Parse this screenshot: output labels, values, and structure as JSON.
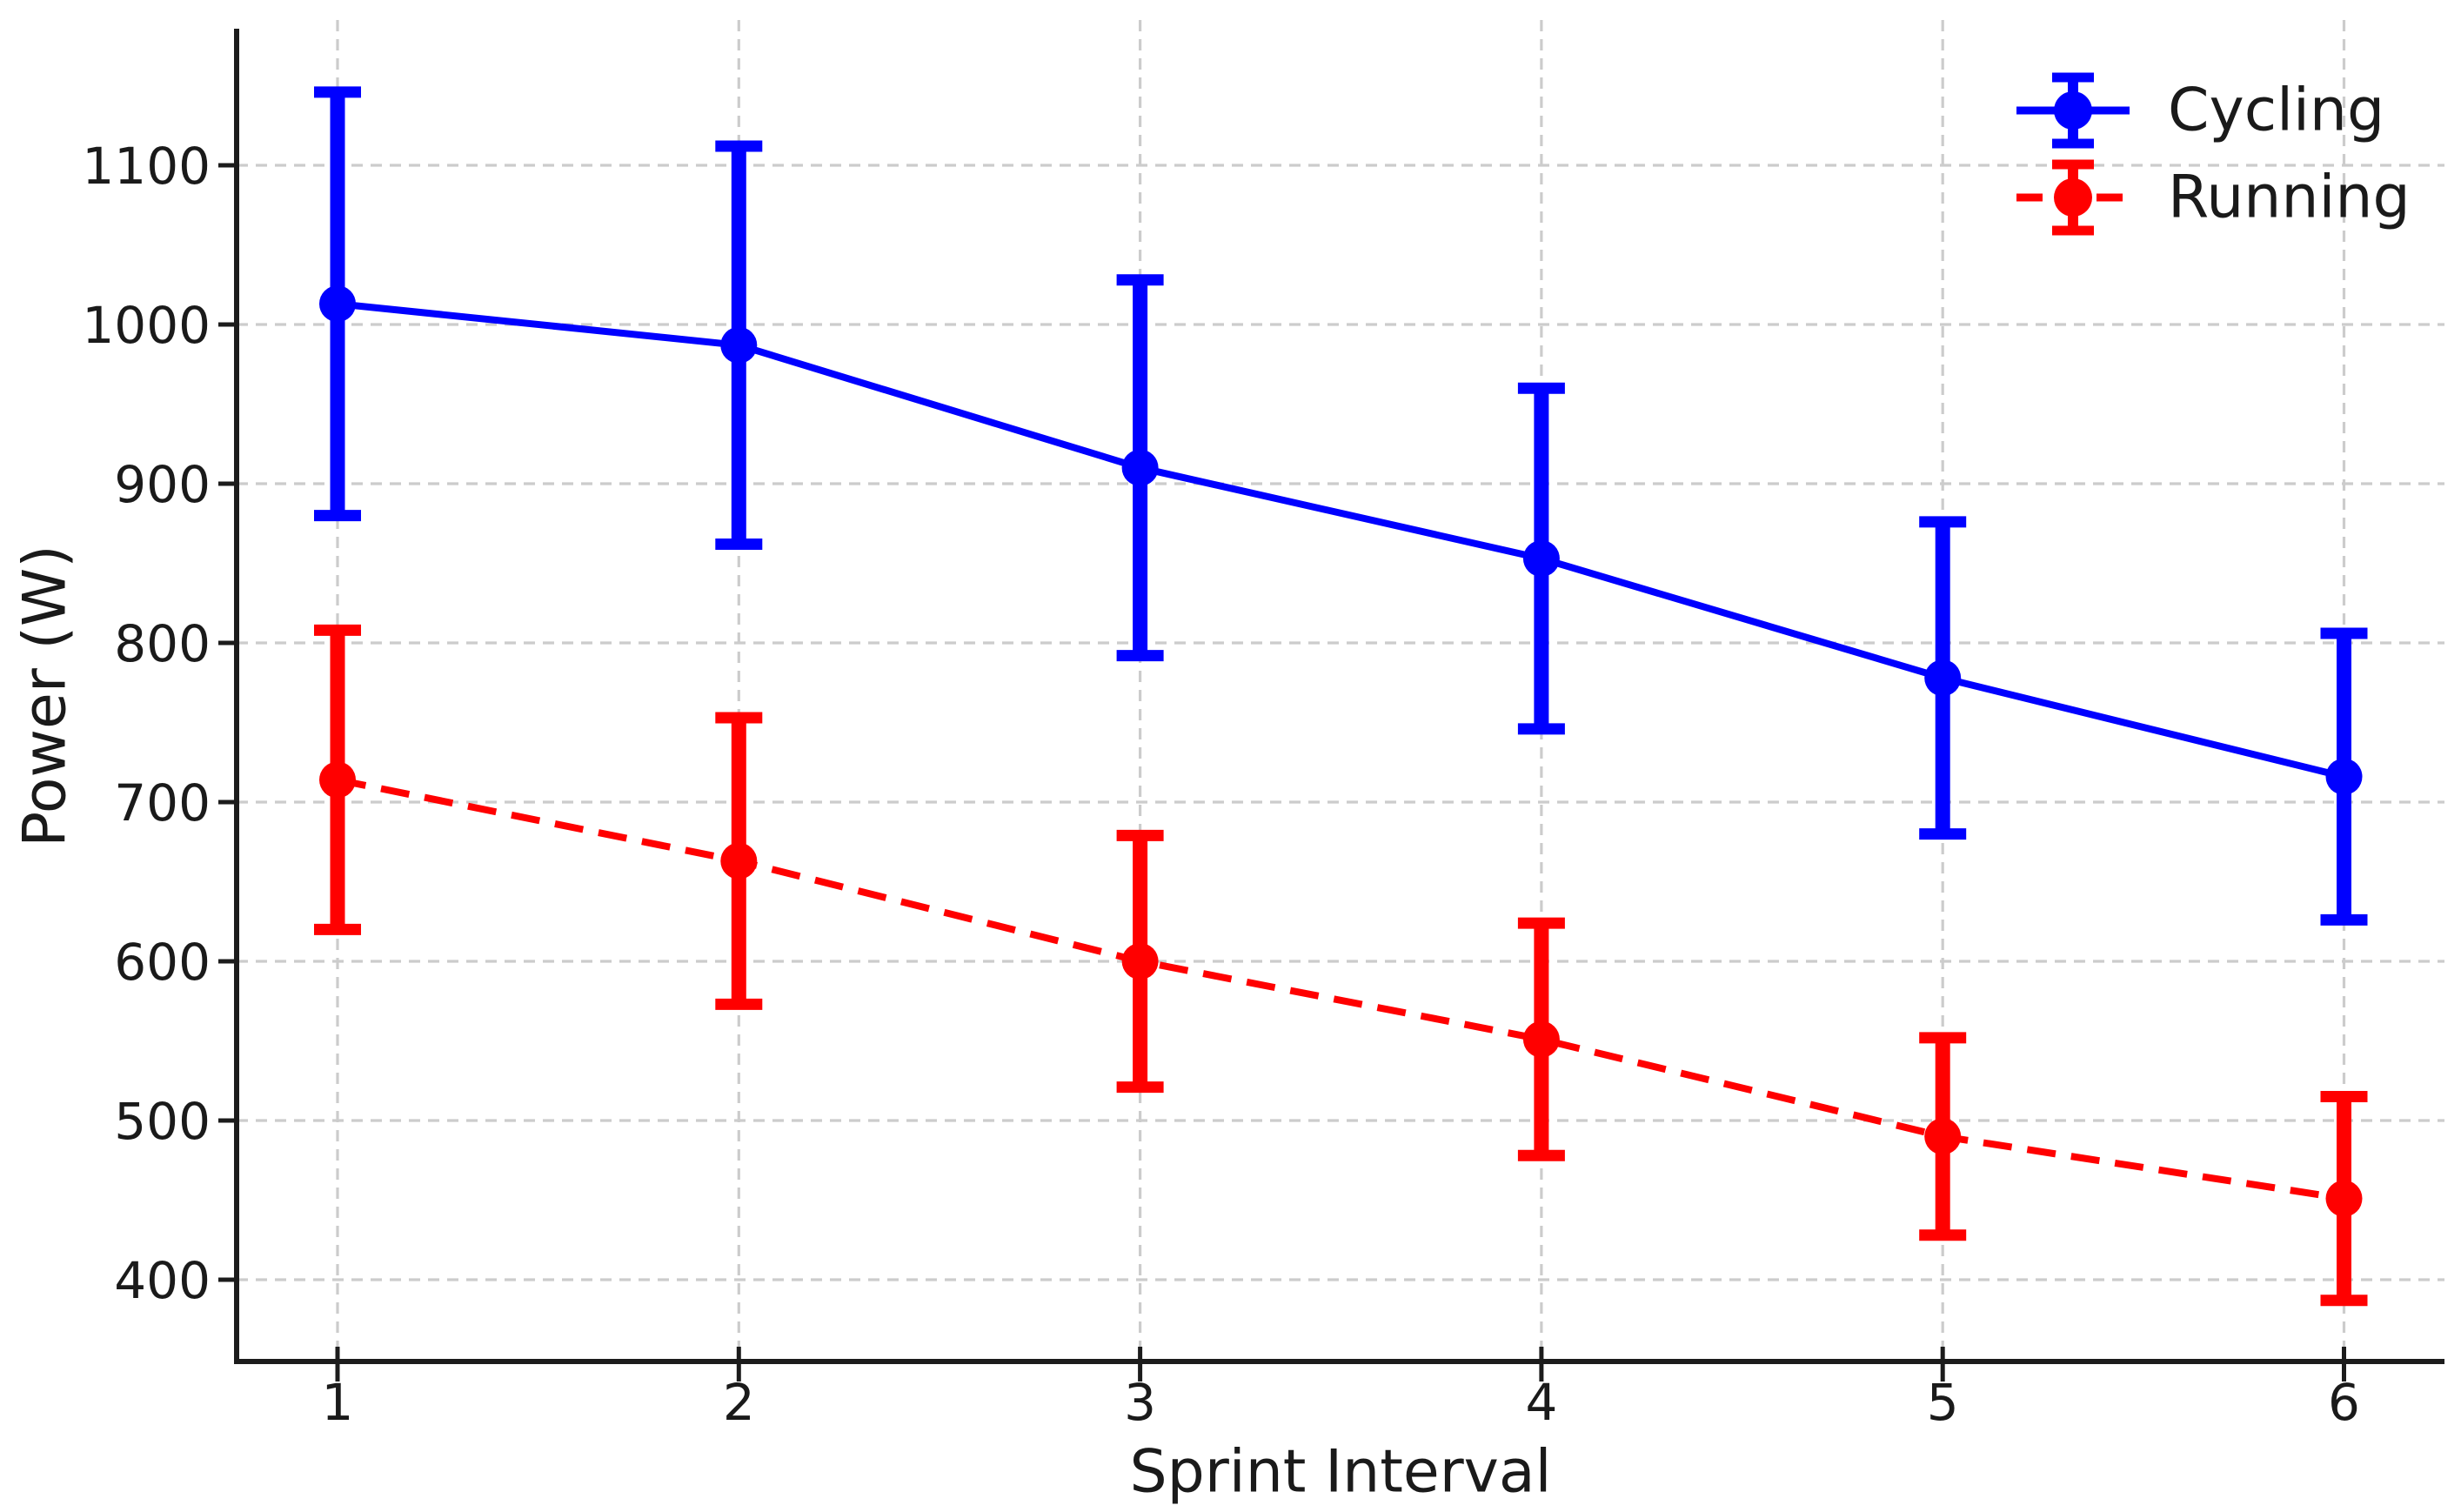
{
  "figure": {
    "background": "#ffffff",
    "text_color": "#1a1a1a",
    "grid_color": "#cccccc",
    "spine_color": "#1c1c1c"
  },
  "chart_data": {
    "type": "line",
    "subtype": "errorbar",
    "title": "",
    "xlabel": "Sprint Interval",
    "ylabel": "Power (W)",
    "x": [
      1,
      2,
      3,
      4,
      5,
      6
    ],
    "xticks": [
      "1",
      "2",
      "3",
      "4",
      "5",
      "6"
    ],
    "yticks": [
      400,
      500,
      600,
      700,
      800,
      900,
      1000,
      1100
    ],
    "xlim": [
      0.75,
      6.25
    ],
    "ylim": [
      349,
      1191
    ],
    "grid": true,
    "grid_style": "dashed",
    "legend_position": "upper right",
    "legend_frame": false,
    "series": [
      {
        "name": "Cycling",
        "color": "#0000ff",
        "linestyle": "solid",
        "marker": "circle",
        "values": [
          1013,
          987,
          910,
          853,
          778,
          716
        ],
        "errors": [
          133,
          125,
          118,
          107,
          98,
          90
        ]
      },
      {
        "name": "Running",
        "color": "#ff0000",
        "linestyle": "dashed",
        "marker": "circle",
        "values": [
          714,
          663,
          600,
          551,
          490,
          451
        ],
        "errors": [
          94,
          90,
          79,
          73,
          62,
          64
        ]
      }
    ]
  }
}
